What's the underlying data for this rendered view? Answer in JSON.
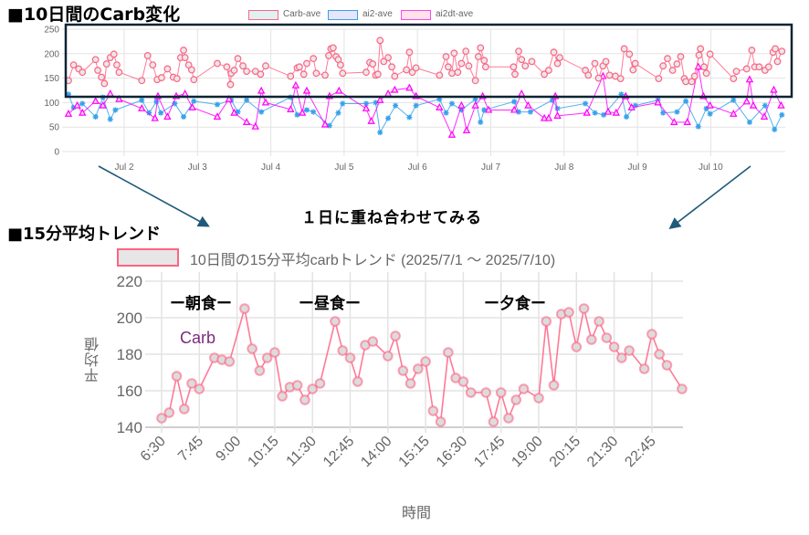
{
  "headings": {
    "top_title": "■10日間のCarb変化",
    "bottom_title": "■15分平均トレンド",
    "overlay_note": "１日に重ね合わせてみる"
  },
  "annotations": {
    "breakfast": "ー朝食ー",
    "lunch": "ー昼食ー",
    "dinner": "ー夕食ー",
    "carb_label": "Carb"
  },
  "colors": {
    "carb": "#ff6384",
    "ai2": "#36a2eb",
    "ai2dt": "#ff00ff",
    "highlight_box": "#0d2433",
    "arrow": "#1f5a7a",
    "carb_label": "#7a2c7a"
  },
  "chart_data": [
    {
      "type": "line",
      "title": "10日間のCarb変化",
      "xlabel": "",
      "ylabel": "",
      "x_unit": "days since Jul 1 00:00",
      "xlim": [
        0.2,
        9.98
      ],
      "ylim": [
        0,
        250
      ],
      "yticks": [
        0,
        50,
        100,
        150,
        200,
        250
      ],
      "xticks": [
        {
          "day": 1,
          "label": "Jul 2"
        },
        {
          "day": 2,
          "label": "Jul 3"
        },
        {
          "day": 3,
          "label": "Jul 4"
        },
        {
          "day": 4,
          "label": "Jul 5"
        },
        {
          "day": 5,
          "label": "Jul 6"
        },
        {
          "day": 6,
          "label": "Jul 7"
        },
        {
          "day": 7,
          "label": "Jul 8"
        },
        {
          "day": 8,
          "label": "Jul 9"
        },
        {
          "day": 9,
          "label": "Jul 10"
        }
      ],
      "grid": true,
      "legend_position": "top",
      "series": [
        {
          "name": "Carb-ave",
          "marker": "circle",
          "x": [
            0.24,
            0.31,
            0.38,
            0.43,
            0.61,
            0.64,
            0.69,
            0.73,
            0.76,
            0.81,
            0.86,
            0.9,
            0.93,
            1.24,
            1.32,
            1.39,
            1.45,
            1.51,
            1.59,
            1.67,
            1.72,
            1.77,
            1.81,
            1.83,
            1.88,
            1.92,
            1.95,
            2.27,
            2.4,
            2.45,
            2.46,
            2.5,
            2.55,
            2.62,
            2.67,
            2.79,
            2.86,
            2.93,
            3.27,
            3.36,
            3.39,
            3.45,
            3.49,
            3.58,
            3.62,
            3.74,
            3.79,
            3.82,
            3.85,
            3.89,
            3.92,
            3.95,
            3.98,
            4.3,
            4.35,
            4.39,
            4.43,
            4.46,
            4.49,
            4.54,
            4.6,
            4.65,
            4.69,
            4.85,
            4.89,
            4.93,
            4.98,
            5.3,
            5.39,
            5.42,
            5.47,
            5.5,
            5.55,
            5.6,
            5.66,
            5.7,
            5.79,
            5.83,
            5.86,
            5.91,
            5.93,
            6.31,
            6.33,
            6.38,
            6.42,
            6.47,
            6.56,
            6.73,
            6.79,
            6.86,
            6.91,
            6.94,
            7.29,
            7.33,
            7.42,
            7.47,
            7.53,
            7.57,
            7.62,
            7.7,
            7.77,
            7.82,
            7.89,
            7.94,
            7.97,
            8.29,
            8.35,
            8.41,
            8.48,
            8.54,
            8.59,
            8.64,
            8.66,
            8.74,
            8.78,
            8.84,
            8.86,
            8.91,
            8.94,
            8.99,
            9.31,
            9.35,
            9.49,
            9.56,
            9.6,
            9.66,
            9.74,
            9.79,
            9.85,
            9.88,
            9.91,
            9.97
          ],
          "y": [
            145,
            177,
            169,
            162,
            188,
            166,
            152,
            139,
            179,
            192,
            199,
            177,
            162,
            145,
            196,
            177,
            147,
            151,
            169,
            152,
            149,
            192,
            207,
            192,
            177,
            167,
            147,
            180,
            173,
            137,
            160,
            166,
            190,
            175,
            164,
            164,
            158,
            175,
            154,
            171,
            173,
            158,
            180,
            190,
            160,
            156,
            196,
            210,
            212,
            194,
            188,
            177,
            160,
            162,
            182,
            179,
            156,
            158,
            227,
            184,
            192,
            173,
            154,
            167,
            203,
            162,
            171,
            156,
            194,
            173,
            160,
            201,
            162,
            180,
            205,
            175,
            145,
            194,
            212,
            186,
            173,
            173,
            158,
            205,
            188,
            175,
            184,
            158,
            166,
            203,
            180,
            192,
            166,
            156,
            180,
            150,
            175,
            184,
            156,
            154,
            149,
            210,
            199,
            167,
            180,
            149,
            175,
            190,
            166,
            179,
            194,
            149,
            143,
            143,
            154,
            197,
            210,
            173,
            160,
            199,
            149,
            164,
            169,
            207,
            173,
            173,
            166,
            173,
            203,
            210,
            184,
            205
          ]
        },
        {
          "name": "ai2-ave",
          "marker": "star",
          "x": [
            0.24,
            0.31,
            0.43,
            0.61,
            0.71,
            0.81,
            0.88,
            1.24,
            1.34,
            1.44,
            1.5,
            1.69,
            1.81,
            1.95,
            2.27,
            2.46,
            2.55,
            2.67,
            2.87,
            3.27,
            3.36,
            3.49,
            3.58,
            3.8,
            3.92,
            3.98,
            4.3,
            4.43,
            4.49,
            4.6,
            4.7,
            4.89,
            4.98,
            5.3,
            5.39,
            5.47,
            5.6,
            5.79,
            5.86,
            5.91,
            6.32,
            6.38,
            6.54,
            6.84,
            6.91,
            7.29,
            7.42,
            7.54,
            7.78,
            7.85,
            7.97,
            8.28,
            8.35,
            8.54,
            8.66,
            8.83,
            8.94,
            8.99,
            9.31,
            9.53,
            9.74,
            9.87,
            9.97
          ],
          "y": [
            117,
            90,
            98,
            71,
            111,
            66,
            85,
            105,
            79,
            102,
            79,
            98,
            71,
            103,
            96,
            105,
            81,
            105,
            81,
            111,
            75,
            85,
            81,
            53,
            79,
            98,
            98,
            100,
            39,
            68,
            94,
            70,
            94,
            107,
            79,
            98,
            85,
            107,
            60,
            85,
            102,
            81,
            81,
            105,
            88,
            98,
            79,
            75,
            117,
            71,
            94,
            105,
            79,
            81,
            103,
            51,
            88,
            77,
            105,
            60,
            94,
            45,
            75
          ]
        },
        {
          "name": "ai2dt-ave",
          "marker": "triangle",
          "x": [
            0.24,
            0.36,
            0.43,
            0.61,
            0.71,
            0.81,
            0.93,
            1.24,
            1.42,
            1.46,
            1.59,
            1.71,
            1.83,
            1.93,
            2.27,
            2.43,
            2.5,
            2.67,
            2.79,
            2.87,
            2.93,
            3.27,
            3.34,
            3.43,
            3.49,
            3.74,
            3.8,
            3.93,
            4.3,
            4.37,
            4.49,
            4.6,
            4.69,
            4.89,
            4.98,
            5.3,
            5.47,
            5.6,
            5.67,
            5.79,
            5.89,
            5.97,
            6.32,
            6.42,
            6.51,
            6.73,
            6.79,
            6.88,
            6.91,
            7.31,
            7.53,
            7.6,
            7.71,
            7.84,
            7.92,
            8.28,
            8.5,
            8.68,
            8.83,
            8.9,
            8.99,
            9.31,
            9.49,
            9.53,
            9.58,
            9.73,
            9.86,
            9.96
          ],
          "y": [
            77,
            94,
            79,
            103,
            94,
            118,
            107,
            88,
            68,
            113,
            71,
            113,
            118,
            90,
            71,
            107,
            79,
            60,
            51,
            124,
            100,
            86,
            135,
            79,
            124,
            55,
            113,
            124,
            88,
            62,
            105,
            118,
            126,
            130,
            113,
            90,
            34,
            94,
            43,
            94,
            113,
            85,
            85,
            118,
            94,
            68,
            68,
            113,
            73,
            79,
            154,
            81,
            79,
            113,
            90,
            100,
            60,
            60,
            173,
            113,
            94,
            77,
            102,
            147,
            94,
            71,
            126,
            94
          ]
        }
      ]
    },
    {
      "type": "line",
      "title": "10日間の15分平均carbトレンド (2025/7/1 〜 2025/7/10)",
      "xlabel": "時間",
      "ylabel": "平均値",
      "ylim": [
        140,
        220
      ],
      "yticks": [
        140,
        160,
        180,
        200,
        220
      ],
      "xticks": [
        "6:30",
        "7:45",
        "9:00",
        "10:15",
        "11:30",
        "12:45",
        "14:00",
        "15:15",
        "16:30",
        "17:45",
        "19:00",
        "20:15",
        "21:30",
        "22:45"
      ],
      "grid": true,
      "legend_position": "top",
      "series": [
        {
          "name": "10日間の15分平均carbトレンド (2025/7/1 〜 2025/7/10)",
          "x": [
            "6:30",
            "6:45",
            "7:00",
            "7:15",
            "7:30",
            "7:45",
            "8:15",
            "8:30",
            "8:45",
            "9:15",
            "9:30",
            "9:45",
            "10:00",
            "10:15",
            "10:30",
            "10:45",
            "11:00",
            "11:15",
            "11:30",
            "11:45",
            "12:15",
            "12:30",
            "12:45",
            "13:00",
            "13:15",
            "13:30",
            "14:00",
            "14:15",
            "14:30",
            "14:45",
            "15:00",
            "15:15",
            "15:30",
            "15:45",
            "16:00",
            "16:15",
            "16:30",
            "16:45",
            "17:15",
            "17:30",
            "17:45",
            "18:00",
            "18:15",
            "18:30",
            "19:00",
            "19:15",
            "19:30",
            "19:45",
            "20:00",
            "20:15",
            "20:30",
            "20:45",
            "21:00",
            "21:15",
            "21:30",
            "21:45",
            "22:00",
            "22:30",
            "22:45",
            "23:00",
            "23:15",
            "23:45"
          ],
          "y": [
            145,
            148,
            168,
            150,
            164,
            161,
            178,
            177,
            176,
            205,
            183,
            171,
            178,
            181,
            157,
            162,
            163,
            155,
            161,
            164,
            198,
            182,
            178,
            165,
            185,
            187,
            179,
            190,
            171,
            164,
            172,
            176,
            149,
            143,
            181,
            167,
            165,
            159,
            159,
            143,
            159,
            145,
            155,
            161,
            156,
            198,
            163,
            202,
            203,
            184,
            205,
            188,
            198,
            189,
            184,
            178,
            182,
            172,
            191,
            180,
            174,
            161
          ]
        }
      ]
    }
  ]
}
